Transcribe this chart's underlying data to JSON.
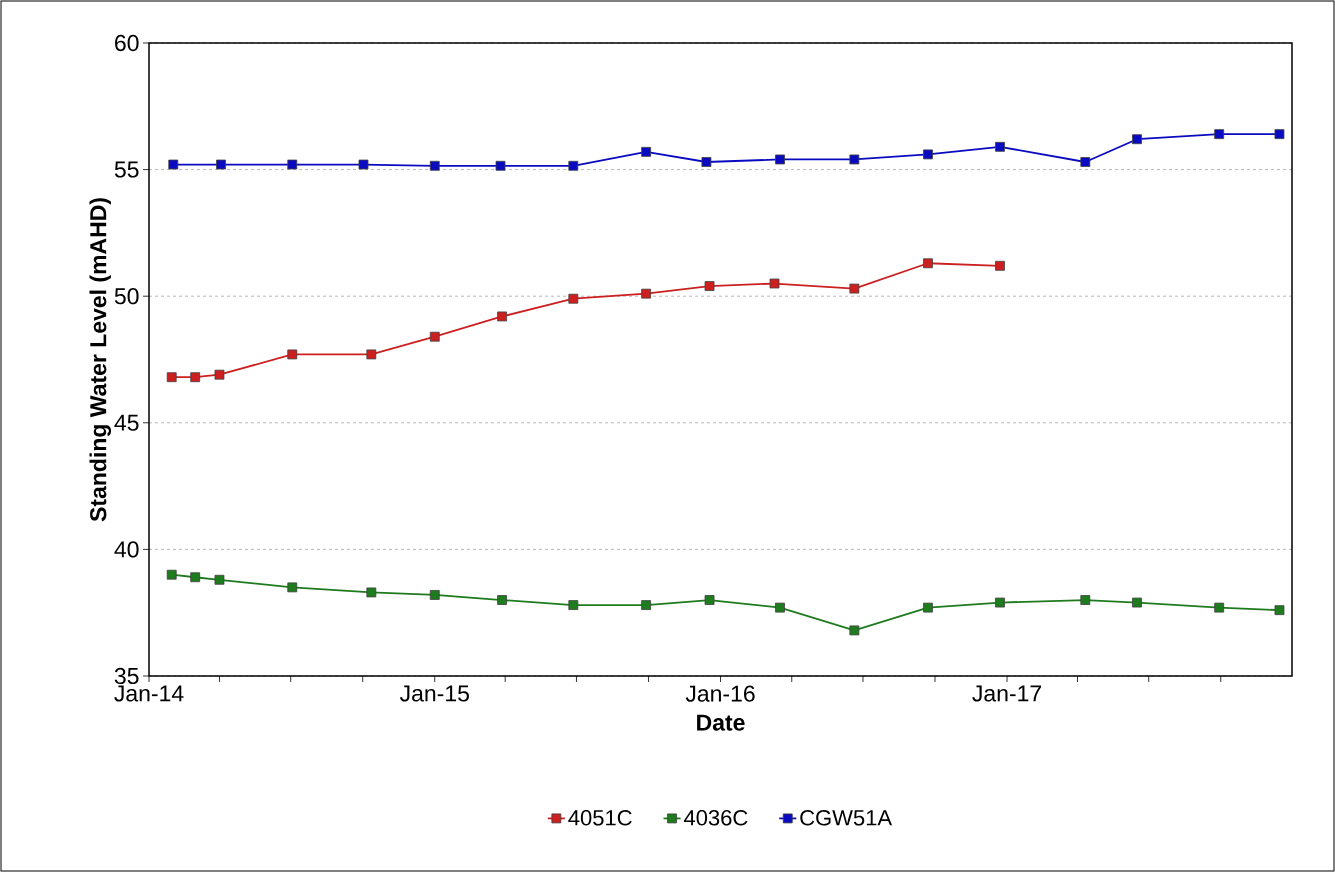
{
  "chart_data": {
    "type": "line",
    "xlabel": "Date",
    "ylabel": "Standing Water Level (mAHD)",
    "xlim": [
      "2014-01-01",
      "2017-12-31"
    ],
    "xticks": [
      {
        "value": "2014-01-01",
        "label": "Jan-14"
      },
      {
        "value": "2014-04-01",
        "label": null
      },
      {
        "value": "2014-07-01",
        "label": null
      },
      {
        "value": "2014-10-01",
        "label": null
      },
      {
        "value": "2015-01-01",
        "label": "Jan-15"
      },
      {
        "value": "2015-04-01",
        "label": null
      },
      {
        "value": "2015-07-01",
        "label": null
      },
      {
        "value": "2015-10-01",
        "label": null
      },
      {
        "value": "2016-01-01",
        "label": "Jan-16"
      },
      {
        "value": "2016-04-01",
        "label": null
      },
      {
        "value": "2016-07-01",
        "label": null
      },
      {
        "value": "2016-10-01",
        "label": null
      },
      {
        "value": "2017-01-01",
        "label": "Jan-17"
      },
      {
        "value": "2017-04-01",
        "label": null
      },
      {
        "value": "2017-07-01",
        "label": null
      },
      {
        "value": "2017-10-01",
        "label": null
      }
    ],
    "ylim": [
      35,
      60
    ],
    "yticks": [
      35,
      40,
      45,
      50,
      55,
      60
    ],
    "grid": "y",
    "legend": "bottom",
    "marker": "square",
    "line_style": "solid",
    "series": [
      {
        "name": "4051C",
        "color": "#cc2020",
        "x": [
          "2014-01-30",
          "2014-03-01",
          "2014-04-01",
          "2014-07-03",
          "2014-10-12",
          "2015-01-01",
          "2015-03-28",
          "2015-06-27",
          "2015-09-28",
          "2015-12-18",
          "2016-03-10",
          "2016-06-20",
          "2016-09-22",
          "2016-12-23"
        ],
        "values": [
          46.8,
          46.8,
          46.9,
          47.7,
          47.7,
          48.4,
          49.2,
          49.9,
          50.1,
          50.4,
          50.5,
          50.3,
          51.3,
          51.2
        ]
      },
      {
        "name": "4036C",
        "color": "#1e7b1e",
        "x": [
          "2014-01-30",
          "2014-03-01",
          "2014-04-01",
          "2014-07-03",
          "2014-10-12",
          "2015-01-01",
          "2015-03-28",
          "2015-06-27",
          "2015-09-28",
          "2015-12-18",
          "2016-03-17",
          "2016-06-20",
          "2016-09-22",
          "2016-12-23",
          "2017-04-11",
          "2017-06-16",
          "2017-09-29",
          "2017-12-15"
        ],
        "values": [
          39.0,
          38.9,
          38.8,
          38.5,
          38.3,
          38.2,
          38.0,
          37.8,
          37.8,
          38.0,
          37.7,
          36.8,
          37.7,
          37.9,
          38.0,
          37.9,
          37.7,
          37.6
        ]
      },
      {
        "name": "CGW51A",
        "color": "#0a0ac0",
        "x": [
          "2014-02-01",
          "2014-04-03",
          "2014-07-03",
          "2014-10-02",
          "2015-01-01",
          "2015-03-26",
          "2015-06-27",
          "2015-09-28",
          "2015-12-14",
          "2016-03-17",
          "2016-06-20",
          "2016-09-22",
          "2016-12-23",
          "2017-04-11",
          "2017-06-16",
          "2017-09-29",
          "2017-12-15"
        ],
        "values": [
          55.2,
          55.2,
          55.2,
          55.2,
          55.15,
          55.15,
          55.15,
          55.7,
          55.3,
          55.4,
          55.4,
          55.6,
          55.9,
          55.3,
          56.2,
          56.4,
          56.4
        ]
      }
    ]
  }
}
